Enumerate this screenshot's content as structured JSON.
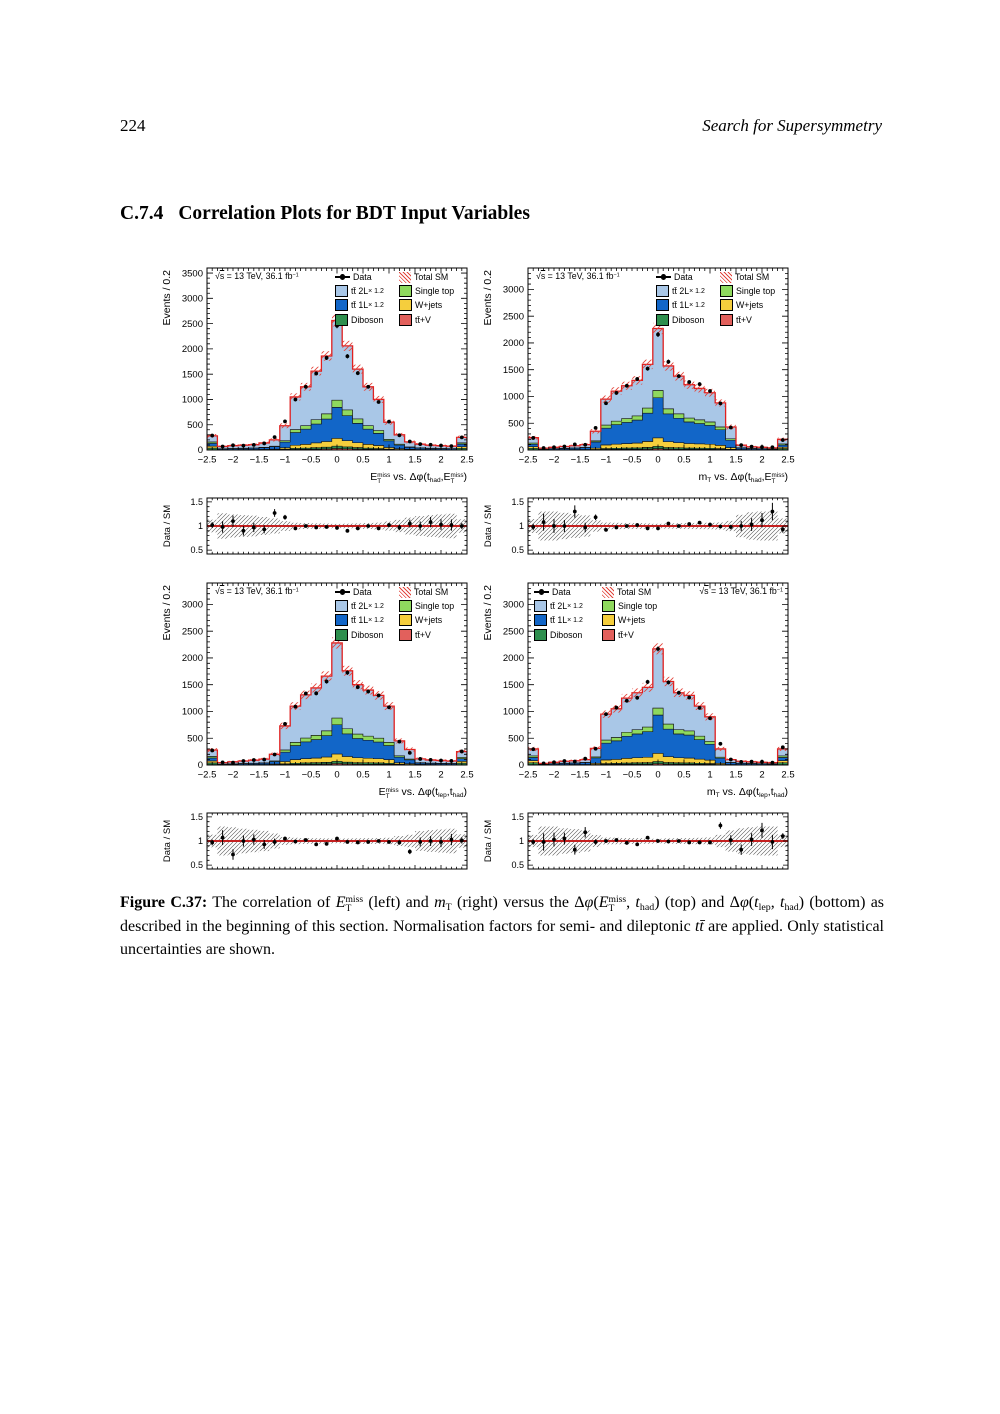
{
  "header": {
    "page_number": "224",
    "running_title": "Search for Supersymmetry"
  },
  "section": {
    "number": "C.7.4",
    "title": "Correlation Plots for BDT Input Variables"
  },
  "figure": {
    "caption_segments": [
      {
        "t": "Figure C.37:",
        "b": true
      },
      {
        "t": " The correlation of "
      },
      {
        "t": "E",
        "i": true
      },
      {
        "sup": "miss",
        "sub": "T"
      },
      {
        "t": " (left) and "
      },
      {
        "t": "m",
        "i": true
      },
      {
        "sub": "T"
      },
      {
        "t": " (right) versus the Δ"
      },
      {
        "t": "φ",
        "i": true
      },
      {
        "t": "("
      },
      {
        "t": "E",
        "i": true
      },
      {
        "sup": "miss",
        "sub": "T"
      },
      {
        "t": ", "
      },
      {
        "t": "t",
        "i": true
      },
      {
        "sub": "had"
      },
      {
        "t": ") (top) and Δ"
      },
      {
        "t": "φ",
        "i": true
      },
      {
        "t": "("
      },
      {
        "t": "t",
        "i": true
      },
      {
        "sub": "lep"
      },
      {
        "t": ", "
      },
      {
        "t": "t",
        "i": true
      },
      {
        "sub": "had"
      },
      {
        "t": ") (bottom) as described in the beginning of this section. Normalisation factors for semi- and dileptonic "
      },
      {
        "t": "tt̄",
        "i": true
      },
      {
        "t": " are applied. Only statistical uncertainties are shown."
      }
    ]
  },
  "style": {
    "colors": {
      "tt2L": "#a9c7e7",
      "tt1L": "#1266c8",
      "diboson": "#2e8f4e",
      "singletop": "#8fd95e",
      "wjets": "#f5ce3d",
      "ttV": "#e2605c",
      "totalSM_line": "#e02020",
      "hatch_red": "#e2453c",
      "ratio_line": "#c42020",
      "data_marker": "#000000"
    }
  },
  "lumi_segments": [
    {
      "t": "√"
    },
    {
      "t": "s",
      "ol": true
    },
    {
      "t": " = 13 TeV, 36.1 fb"
    },
    {
      "sup": "−1"
    }
  ],
  "legend": {
    "col1": [
      {
        "label": "Data",
        "marker": "data"
      },
      {
        "label": "tt̄ 2L",
        "suffix": " × 1.2",
        "color_key": "tt2L"
      },
      {
        "label": "tt̄ 1L",
        "suffix": " × 1.2",
        "color_key": "tt1L"
      },
      {
        "label": "Diboson",
        "color_key": "diboson"
      }
    ],
    "col2": [
      {
        "label": "Total SM",
        "marker": "hatch"
      },
      {
        "label": "Single top",
        "color_key": "singletop"
      },
      {
        "label": "W+jets",
        "color_key": "wjets"
      },
      {
        "label": "tt̄+V",
        "color_key": "ttV"
      }
    ]
  },
  "axes": {
    "ylabel": "Events / 0.2",
    "ratio_ylabel": "Data / SM",
    "xtick_values": [
      -2.5,
      -2,
      -1.5,
      -1,
      -0.5,
      0,
      0.5,
      1,
      1.5,
      2,
      2.5
    ],
    "xtick_labels": [
      "−2.5",
      "−2",
      "−1.5",
      "−1",
      "−0.5",
      "0",
      "0.5",
      "1",
      "1.5",
      "2",
      "2.5"
    ],
    "ratio_ytick_values": [
      0.5,
      1,
      1.5
    ],
    "ratio_ytick_labels": [
      "0.5",
      "1",
      "1.5"
    ],
    "ratio_ylim": [
      0.42,
      1.58
    ]
  },
  "composition": {
    "order": [
      "ttV",
      "diboson",
      "wjets",
      "tt1L",
      "singletop",
      "tt2L"
    ],
    "central": {
      "ttV": 0.012,
      "diboson": 0.018,
      "wjets": 0.06,
      "tt1L": 0.24,
      "singletop": 0.055,
      "tt2L": 0.615
    },
    "central_mt": {
      "ttV": 0.012,
      "diboson": 0.018,
      "wjets": 0.07,
      "tt1L": 0.33,
      "singletop": 0.06,
      "tt2L": 0.51
    },
    "edge": {
      "ttV": 0.02,
      "diboson": 0.12,
      "wjets": 0.13,
      "tt1L": 0.2,
      "singletop": 0.1,
      "tt2L": 0.43
    }
  },
  "chart_data": [
    {
      "type": "bar",
      "name": "met-vs-dphi-thad-met",
      "xlabel_segments": [
        {
          "t": "E"
        },
        {
          "sup": "miss",
          "sub": "T"
        },
        {
          "t": " vs. Δφ(t"
        },
        {
          "sub": "had"
        },
        {
          "t": ","
        },
        {
          "t": "E"
        },
        {
          "sup": "miss",
          "sub": "T"
        },
        {
          "t": ")"
        }
      ],
      "ylabel": "Events / 0.2",
      "x_range": [
        -2.5,
        2.5
      ],
      "bin_width": 0.2,
      "ylim": [
        0,
        3600
      ],
      "yticks": [
        0,
        500,
        1000,
        1500,
        2000,
        2500,
        3000,
        3500
      ],
      "ytick_labels": [
        "0",
        "500",
        "1000",
        "1500",
        "2000",
        "2500",
        "3000",
        "3500"
      ],
      "legend_side": "right",
      "comp": "central",
      "totals": [
        280,
        70,
        85,
        95,
        105,
        140,
        200,
        480,
        1050,
        1250,
        1560,
        1860,
        2560,
        2060,
        1600,
        1250,
        1000,
        550,
        300,
        160,
        115,
        95,
        85,
        75,
        250
      ],
      "data": [
        286,
        69,
        94,
        86,
        102,
        130,
        254,
        566,
        998,
        1250,
        1513,
        1823,
        2458,
        1854,
        1520,
        1250,
        950,
        561,
        291,
        168,
        115,
        103,
        88,
        77,
        250
      ],
      "ratio": [
        1.02,
        0.98,
        1.1,
        0.9,
        0.97,
        0.93,
        1.27,
        1.18,
        0.95,
        1.0,
        0.97,
        0.98,
        0.96,
        0.9,
        0.95,
        1.0,
        0.95,
        1.02,
        0.97,
        1.05,
        1.0,
        1.08,
        1.03,
        1.02,
        1.0
      ]
    },
    {
      "type": "bar",
      "name": "mt-vs-dphi-thad-met",
      "xlabel_segments": [
        {
          "t": "m"
        },
        {
          "sub": "T"
        },
        {
          "t": " vs. Δφ(t"
        },
        {
          "sub": "had"
        },
        {
          "t": ","
        },
        {
          "t": "E"
        },
        {
          "sup": "miss",
          "sub": "T"
        },
        {
          "t": ")"
        }
      ],
      "ylabel": "Events / 0.2",
      "x_range": [
        -2.5,
        2.5
      ],
      "bin_width": 0.2,
      "ylim": [
        0,
        3400
      ],
      "yticks": [
        0,
        500,
        1000,
        1500,
        2000,
        2500,
        3000
      ],
      "ytick_labels": [
        "0",
        "500",
        "1000",
        "1500",
        "2000",
        "2500",
        "3000"
      ],
      "legend_side": "right",
      "comp": "central_mt",
      "totals": [
        230,
        35,
        50,
        65,
        80,
        100,
        350,
        950,
        1100,
        1200,
        1300,
        1600,
        2270,
        1570,
        1380,
        1220,
        1150,
        1070,
        880,
        430,
        90,
        60,
        50,
        40,
        200
      ],
      "data": [
        225,
        38,
        50,
        65,
        104,
        97,
        413,
        874,
        1067,
        1200,
        1326,
        1520,
        2157,
        1649,
        1380,
        1269,
        1231,
        1102,
        871,
        421,
        90,
        62,
        56,
        52,
        186
      ],
      "ratio": [
        0.98,
        1.08,
        1.0,
        1.0,
        1.3,
        0.97,
        1.18,
        0.92,
        0.97,
        1.0,
        1.02,
        0.95,
        0.95,
        1.05,
        1.0,
        1.04,
        1.07,
        1.03,
        0.99,
        0.98,
        1.0,
        1.03,
        1.12,
        1.3,
        0.93
      ]
    },
    {
      "type": "bar",
      "name": "met-vs-dphi-tlep-thad",
      "xlabel_segments": [
        {
          "t": "E"
        },
        {
          "sup": "miss",
          "sub": "T"
        },
        {
          "t": " vs. Δφ(t"
        },
        {
          "sub": "lep"
        },
        {
          "t": ",t"
        },
        {
          "sub": "had"
        },
        {
          "t": ")"
        }
      ],
      "ylabel": "Events / 0.2",
      "x_range": [
        -2.5,
        2.5
      ],
      "bin_width": 0.2,
      "ylim": [
        0,
        3400
      ],
      "yticks": [
        0,
        500,
        1000,
        1500,
        2000,
        2500,
        3000
      ],
      "ytick_labels": [
        "0",
        "500",
        "1000",
        "1500",
        "2000",
        "2500",
        "3000"
      ],
      "legend_side": "right",
      "comp": "central",
      "totals": [
        280,
        45,
        60,
        75,
        90,
        110,
        200,
        730,
        1100,
        1310,
        1440,
        1660,
        2280,
        1760,
        1500,
        1400,
        1300,
        1100,
        450,
        290,
        115,
        95,
        85,
        75,
        250
      ],
      "data": [
        272,
        48,
        43,
        75,
        93,
        102,
        196,
        767,
        1089,
        1336,
        1339,
        1560,
        2394,
        1725,
        1455,
        1372,
        1300,
        1078,
        437,
        226,
        113,
        95,
        83,
        77,
        253
      ],
      "ratio": [
        0.97,
        1.07,
        0.72,
        1.0,
        1.03,
        0.93,
        0.98,
        1.05,
        0.99,
        1.02,
        0.93,
        0.94,
        1.05,
        0.98,
        0.97,
        0.98,
        1.0,
        0.98,
        0.97,
        0.78,
        0.98,
        1.0,
        0.98,
        1.03,
        1.01
      ]
    },
    {
      "type": "bar",
      "name": "mt-vs-dphi-tlep-thad",
      "xlabel_segments": [
        {
          "t": "m"
        },
        {
          "sub": "T"
        },
        {
          "t": " vs. Δφ(t"
        },
        {
          "sub": "lep"
        },
        {
          "t": ",t"
        },
        {
          "sub": "had"
        },
        {
          "t": ")"
        }
      ],
      "ylabel": "Events / 0.2",
      "x_range": [
        -2.5,
        2.5
      ],
      "bin_width": 0.2,
      "ylim": [
        0,
        3400
      ],
      "yticks": [
        0,
        500,
        1000,
        1500,
        2000,
        2500,
        3000
      ],
      "ytick_labels": [
        "0",
        "500",
        "1000",
        "1500",
        "2000",
        "2500",
        "3000"
      ],
      "legend_side": "left",
      "comp": "central_mt",
      "totals": [
        300,
        30,
        50,
        70,
        80,
        100,
        310,
        950,
        1050,
        1250,
        1350,
        1450,
        2170,
        1560,
        1350,
        1300,
        1100,
        900,
        300,
        100,
        70,
        60,
        50,
        45,
        300
      ],
      "data": [
        294,
        29,
        52,
        74,
        66,
        118,
        304,
        950,
        1071,
        1200,
        1256,
        1552,
        2170,
        1544,
        1350,
        1261,
        1067,
        873,
        396,
        102,
        57,
        62,
        61,
        44,
        330
      ],
      "ratio": [
        0.98,
        0.98,
        1.03,
        1.05,
        0.82,
        1.18,
        0.98,
        1.0,
        1.02,
        0.96,
        0.93,
        1.07,
        1.0,
        0.99,
        1.0,
        0.97,
        0.97,
        0.97,
        1.32,
        1.02,
        0.82,
        1.03,
        1.22,
        0.98,
        1.1
      ]
    }
  ]
}
